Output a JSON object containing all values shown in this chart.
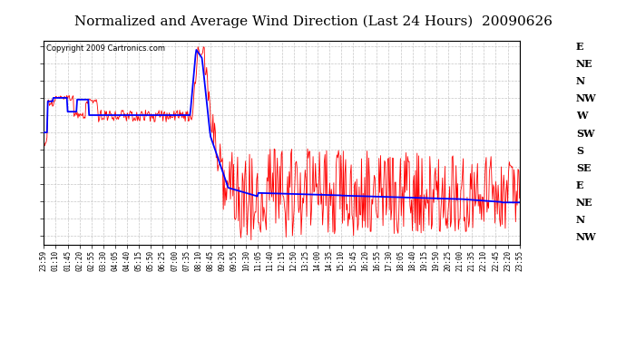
{
  "title": "Normalized and Average Wind Direction (Last 24 Hours)  20090626",
  "copyright": "Copyright 2009 Cartronics.com",
  "background_color": "#ffffff",
  "plot_bg_color": "#ffffff",
  "grid_color": "#c0c0c0",
  "y_labels": [
    "E",
    "NE",
    "N",
    "NW",
    "W",
    "SW",
    "S",
    "SE",
    "E",
    "NE",
    "N",
    "NW"
  ],
  "y_ticks": [
    0,
    1,
    2,
    3,
    4,
    5,
    6,
    7,
    8,
    9,
    10,
    11
  ],
  "x_tick_labels": [
    "23:59",
    "01:10",
    "01:45",
    "02:20",
    "02:55",
    "03:30",
    "04:05",
    "04:40",
    "05:15",
    "05:50",
    "06:25",
    "07:00",
    "07:35",
    "08:10",
    "08:45",
    "09:20",
    "09:55",
    "10:30",
    "11:05",
    "11:40",
    "12:15",
    "12:50",
    "13:25",
    "14:00",
    "14:35",
    "15:10",
    "15:45",
    "16:20",
    "16:55",
    "17:30",
    "18:05",
    "18:40",
    "19:15",
    "19:50",
    "20:25",
    "21:00",
    "21:35",
    "22:10",
    "22:45",
    "23:20",
    "23:55"
  ],
  "ylim_min": -0.3,
  "ylim_max": 11.5,
  "red_line_color": "#ff0000",
  "blue_line_color": "#0000ff",
  "title_fontsize": 11,
  "copyright_fontsize": 6,
  "ylabel_fontsize": 8
}
